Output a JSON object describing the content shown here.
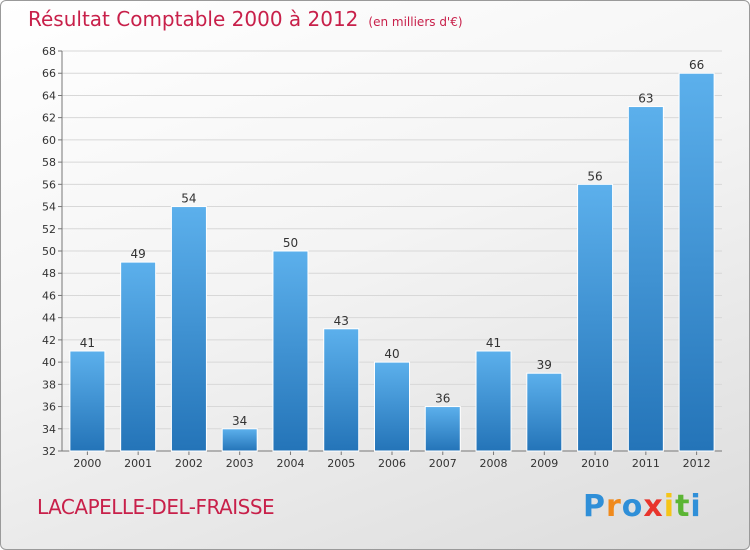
{
  "chart_data": {
    "type": "bar",
    "title": "Résultat Comptable 2000 à 2012",
    "subtitle": "(en milliers d'€)",
    "categories": [
      "2000",
      "2001",
      "2002",
      "2003",
      "2004",
      "2005",
      "2006",
      "2007",
      "2008",
      "2009",
      "2010",
      "2011",
      "2012"
    ],
    "values": [
      41,
      49,
      54,
      34,
      50,
      43,
      40,
      36,
      41,
      39,
      56,
      63,
      66
    ],
    "yticks": [
      32,
      34,
      36,
      38,
      40,
      42,
      44,
      46,
      48,
      50,
      52,
      54,
      56,
      58,
      60,
      62,
      64,
      66,
      68
    ],
    "ylim": [
      32,
      68
    ],
    "xlabel": "",
    "ylabel": "",
    "grid": true,
    "bar_color": "#3b8fd6"
  },
  "footer": {
    "town": "LACAPELLE-DEL-FRAISSE",
    "logo_letters": [
      "P",
      "r",
      "o",
      "x",
      "i",
      "t",
      "i"
    ],
    "logo_colors": [
      "#2f8fd8",
      "#f08a1c",
      "#2f8fd8",
      "#e8342c",
      "#f5c518",
      "#5bb534",
      "#2f8fd8"
    ]
  }
}
